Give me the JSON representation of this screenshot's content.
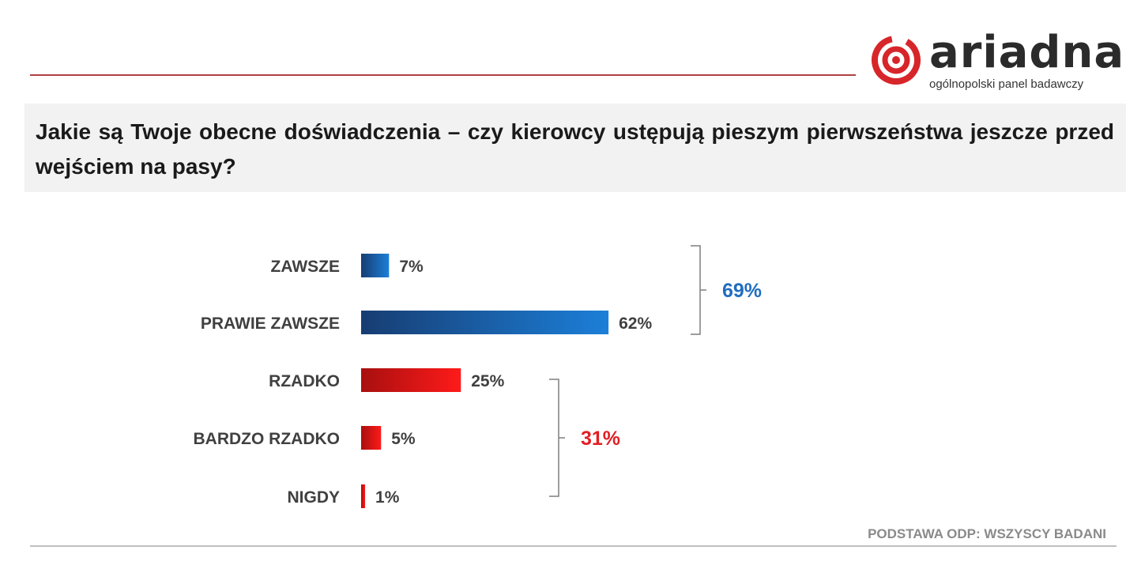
{
  "logo": {
    "name": "ariadna",
    "tagline": "ogólnopolski panel badawczy",
    "icon": "spiral-target-icon"
  },
  "title": "Jakie są Twoje obecne doświadczenia – czy kierowcy ustępują pieszym pierwszeństwa jeszcze przed wejściem na pasy?",
  "footnote": "PODSTAWA ODP: WSZYSCY BADANI",
  "colors": {
    "blue_dark": "#173d72",
    "blue_light": "#1c7fd8",
    "red_dark": "#a80f0f",
    "red_light": "#ff1a1a",
    "group_blue": "#1f6dc0",
    "group_red": "#e31e24",
    "text": "#404040",
    "accent_line": "#b04040"
  },
  "chart_data": {
    "type": "bar",
    "orientation": "horizontal",
    "categories": [
      "ZAWSZE",
      "PRAWIE ZAWSZE",
      "RZADKO",
      "BARDZO RZADKO",
      "NIGDY"
    ],
    "values": [
      7,
      62,
      25,
      5,
      1
    ],
    "value_labels": [
      "7%",
      "62%",
      "25%",
      "5%",
      "1%"
    ],
    "unit": "%",
    "groups": [
      {
        "label": "69%",
        "value": 69,
        "members": [
          "ZAWSZE",
          "PRAWIE ZAWSZE"
        ],
        "color": "#1f6dc0"
      },
      {
        "label": "31%",
        "value": 31,
        "members": [
          "RZADKO",
          "BARDZO RZADKO",
          "NIGDY"
        ],
        "color": "#e31e24"
      }
    ]
  }
}
